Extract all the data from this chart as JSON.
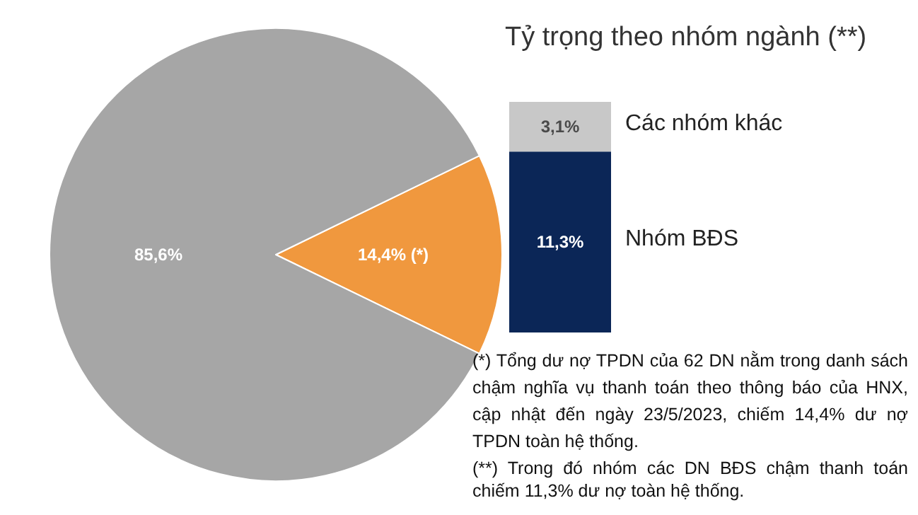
{
  "chart_data": [
    {
      "type": "pie",
      "categories": [
        null,
        null
      ],
      "values": [
        14.4,
        85.6
      ],
      "colors": [
        "#f0983e",
        "#a6a6a6"
      ],
      "value_labels": [
        "14,4% (*)",
        "85,6%"
      ],
      "annotations": [
        "(*) Tổng dư nợ TPDN của 62 DN nằm trong danh sách chậm nghĩa vụ thanh toán theo thông báo của HNX, cập nhật đến ngày 23/5/2023, chiếm 14,4% dư nợ TPDN toàn hệ thống."
      ]
    },
    {
      "type": "bar",
      "stacked": true,
      "title": "Tỷ trọng theo nhóm ngành (**)",
      "categories": [
        null
      ],
      "tick_labels": false,
      "series": [
        {
          "name": "Nhóm BĐS",
          "color": "#0b2657",
          "values": [
            11.3
          ],
          "value_labels": [
            "11,3%"
          ]
        },
        {
          "name": "Các nhóm khác",
          "color": "#c8c8c8",
          "values": [
            3.1
          ],
          "value_labels": [
            "3,1%"
          ]
        }
      ],
      "annotations": [
        "(**) Trong đó nhóm các DN BĐS chậm thanh toán chiếm 11,3% dư nợ toàn hệ thống."
      ]
    }
  ]
}
